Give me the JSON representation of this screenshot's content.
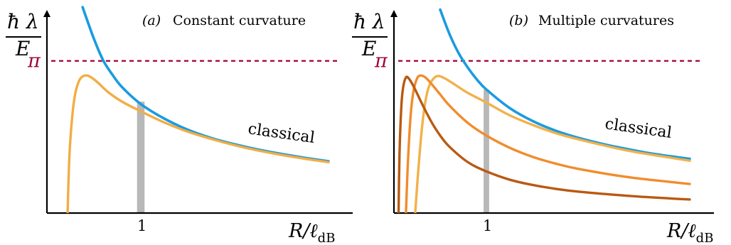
{
  "chart_data": [
    {
      "type": "line",
      "title": "Constant curvature",
      "panel_tag": "(a)",
      "ylabel_top": "ħ λ",
      "ylabel_bottom": "E",
      "xlabel": "R/ℓ",
      "xlabel_sub": "dB",
      "x_ticks": [
        1
      ],
      "x_tick_labels": [
        "1"
      ],
      "y_tick_labels": [
        "π"
      ],
      "xlim": [
        0,
        3
      ],
      "ylim": [
        0,
        3.9
      ],
      "reference_line": {
        "y": 3.1416,
        "label": "π",
        "color": "#a0003c",
        "style": "dashed"
      },
      "highlight_band": {
        "x": [
          0.96,
          1.04
        ],
        "y_max": 2.3,
        "color": "#b8b8b8"
      },
      "annotation": "classical",
      "series": [
        {
          "role": "classical",
          "color": "#1a9be0",
          "x": [
            0.38,
            0.5,
            0.6,
            0.7,
            0.8,
            1.0,
            1.25,
            1.5,
            1.75,
            2.0,
            2.25,
            2.5,
            2.75,
            3.0
          ],
          "y": [
            4.25,
            3.6,
            3.15,
            2.85,
            2.6,
            2.25,
            1.95,
            1.72,
            1.55,
            1.42,
            1.31,
            1.22,
            1.14,
            1.07
          ]
        },
        {
          "role": "quantum",
          "color": "#f2ad44",
          "x": [
            0.22,
            0.24,
            0.27,
            0.3,
            0.34,
            0.38,
            0.43,
            0.48,
            0.55,
            0.65,
            0.8,
            1.0,
            1.25,
            1.5,
            1.75,
            2.0,
            2.25,
            2.5,
            2.75,
            3.0
          ],
          "y": [
            0.0,
            1.2,
            2.0,
            2.45,
            2.72,
            2.82,
            2.84,
            2.79,
            2.68,
            2.5,
            2.3,
            2.1,
            1.87,
            1.68,
            1.53,
            1.4,
            1.29,
            1.2,
            1.12,
            1.05
          ]
        }
      ]
    },
    {
      "type": "line",
      "title": "Multiple curvatures",
      "panel_tag": "(b)",
      "ylabel_top": "ħ λ",
      "ylabel_bottom": "E",
      "xlabel": "R/ℓ",
      "xlabel_sub": "dB",
      "x_ticks": [
        1
      ],
      "x_tick_labels": [
        "1"
      ],
      "y_tick_labels": [
        "π"
      ],
      "xlim": [
        0,
        3.2
      ],
      "ylim": [
        0,
        3.9
      ],
      "reference_line": {
        "y": 3.1416,
        "label": "π",
        "color": "#a0003c",
        "style": "dashed"
      },
      "highlight_band": {
        "x": [
          0.97,
          1.03
        ],
        "y_max": 2.55,
        "color": "#b8b8b8"
      },
      "annotation": "classical",
      "series": [
        {
          "role": "classical",
          "color": "#1a9be0",
          "x": [
            0.5,
            0.6,
            0.7,
            0.8,
            0.9,
            1.0,
            1.25,
            1.5,
            1.75,
            2.0,
            2.25,
            2.5,
            2.75,
            3.0,
            3.2
          ],
          "y": [
            4.2,
            3.7,
            3.3,
            3.0,
            2.75,
            2.55,
            2.17,
            1.9,
            1.7,
            1.55,
            1.43,
            1.33,
            1.24,
            1.17,
            1.12
          ]
        },
        {
          "role": "quantum-1",
          "color": "#f2b14a",
          "x": [
            0.23,
            0.26,
            0.3,
            0.34,
            0.38,
            0.43,
            0.48,
            0.55,
            0.62,
            0.7,
            0.8,
            1.0,
            1.25,
            1.5,
            1.75,
            2.0,
            2.5,
            3.0,
            3.2
          ],
          "y": [
            0.0,
            0.8,
            1.7,
            2.3,
            2.62,
            2.78,
            2.83,
            2.78,
            2.7,
            2.6,
            2.48,
            2.28,
            2.02,
            1.82,
            1.65,
            1.52,
            1.3,
            1.14,
            1.08
          ]
        },
        {
          "role": "quantum-2",
          "color": "#f18c2d",
          "x": [
            0.13,
            0.15,
            0.18,
            0.21,
            0.25,
            0.29,
            0.34,
            0.4,
            0.5,
            0.6,
            0.8,
            1.0,
            1.25,
            1.5,
            1.75,
            2.0,
            2.5,
            3.0,
            3.2
          ],
          "y": [
            0.0,
            1.0,
            2.0,
            2.5,
            2.78,
            2.84,
            2.8,
            2.68,
            2.45,
            2.22,
            1.86,
            1.6,
            1.35,
            1.16,
            1.02,
            0.91,
            0.75,
            0.64,
            0.6
          ]
        },
        {
          "role": "quantum-3",
          "color": "#b85a12",
          "x": [
            0.05,
            0.06,
            0.08,
            0.1,
            0.13,
            0.16,
            0.2,
            0.25,
            0.3,
            0.4,
            0.5,
            0.6,
            0.8,
            1.0,
            1.25,
            1.5,
            1.75,
            2.0,
            2.5,
            3.0,
            3.2
          ],
          "y": [
            0.0,
            1.2,
            2.2,
            2.6,
            2.8,
            2.78,
            2.66,
            2.47,
            2.27,
            1.9,
            1.6,
            1.37,
            1.05,
            0.86,
            0.69,
            0.58,
            0.5,
            0.44,
            0.36,
            0.3,
            0.28
          ]
        }
      ]
    }
  ]
}
